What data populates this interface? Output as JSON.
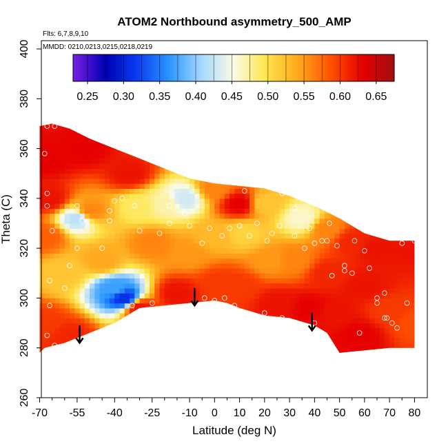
{
  "chart_data": {
    "type": "heatmap",
    "title": "ATOM2 Northbound asymmetry_500_AMP",
    "flights_note": "Flts: 6,7,8,9,10",
    "dates_note": "MMDD: 0210,0213,0215,0218,0219",
    "xlabel": "Latitude (deg N)",
    "ylabel": "Theta (C)",
    "xlim": [
      -70,
      82
    ],
    "ylim": [
      260,
      405
    ],
    "x_ticks": [
      -70,
      -55,
      -40,
      -25,
      -10,
      0,
      10,
      20,
      30,
      40,
      50,
      60,
      70,
      80
    ],
    "x_minor_ticks": [
      -65,
      -60,
      -50,
      -45,
      -35,
      -30,
      -20,
      -15,
      -5,
      5,
      15,
      25,
      35,
      45,
      55,
      65,
      75
    ],
    "y_ticks": [
      260,
      280,
      300,
      320,
      340,
      360,
      380,
      400
    ],
    "colorbar": {
      "min": 0.23,
      "max": 0.675,
      "tick_values": [
        0.25,
        0.3,
        0.35,
        0.4,
        0.45,
        0.5,
        0.55,
        0.6,
        0.65
      ],
      "tick_labels": [
        "0.25",
        "0.30",
        "0.35",
        "0.40",
        "0.45",
        "0.50",
        "0.55",
        "0.60",
        "0.65"
      ],
      "colors": [
        "#7a1fe0",
        "#0000b4",
        "#0a3cf0",
        "#2a96ff",
        "#a6d8ff",
        "#fbfbe6",
        "#ffe54c",
        "#ffa81c",
        "#ff5400",
        "#e60000",
        "#a01010"
      ]
    },
    "upper_boundary": [
      [
        -70,
        369
      ],
      [
        -65,
        370
      ],
      [
        -58,
        368
      ],
      [
        -50,
        364
      ],
      [
        -40,
        360
      ],
      [
        -30,
        356
      ],
      [
        -20,
        352
      ],
      [
        -10,
        348
      ],
      [
        0,
        346
      ],
      [
        10,
        345
      ],
      [
        20,
        344
      ],
      [
        30,
        341
      ],
      [
        40,
        337
      ],
      [
        50,
        332
      ],
      [
        60,
        326
      ],
      [
        70,
        323
      ],
      [
        80,
        323
      ]
    ],
    "lower_boundary": [
      [
        -70,
        278
      ],
      [
        -68,
        280
      ],
      [
        -60,
        282
      ],
      [
        -50,
        286
      ],
      [
        -40,
        290
      ],
      [
        -30,
        296
      ],
      [
        -20,
        297
      ],
      [
        -10,
        298
      ],
      [
        0,
        299
      ],
      [
        5,
        298
      ],
      [
        10,
        296
      ],
      [
        20,
        293
      ],
      [
        30,
        292
      ],
      [
        40,
        289
      ],
      [
        45,
        286
      ],
      [
        50,
        278
      ],
      [
        60,
        279
      ],
      [
        70,
        280
      ],
      [
        80,
        280
      ]
    ],
    "field_points": [
      {
        "lat": -68,
        "theta": 355,
        "value": 0.63
      },
      {
        "lat": -66,
        "theta": 340,
        "value": 0.62
      },
      {
        "lat": -68,
        "theta": 325,
        "value": 0.58
      },
      {
        "lat": -68,
        "theta": 290,
        "value": 0.6
      },
      {
        "lat": -60,
        "theta": 310,
        "value": 0.52
      },
      {
        "lat": -55,
        "theta": 332,
        "value": 0.42
      },
      {
        "lat": -58,
        "theta": 285,
        "value": 0.61
      },
      {
        "lat": -52,
        "theta": 360,
        "value": 0.63
      },
      {
        "lat": -50,
        "theta": 335,
        "value": 0.56
      },
      {
        "lat": -45,
        "theta": 315,
        "value": 0.54
      },
      {
        "lat": -40,
        "theta": 304,
        "value": 0.37
      },
      {
        "lat": -36,
        "theta": 300,
        "value": 0.31
      },
      {
        "lat": -30,
        "theta": 296,
        "value": 0.62
      },
      {
        "lat": -34,
        "theta": 350,
        "value": 0.62
      },
      {
        "lat": -30,
        "theta": 337,
        "value": 0.49
      },
      {
        "lat": -20,
        "theta": 338,
        "value": 0.47
      },
      {
        "lat": -25,
        "theta": 322,
        "value": 0.56
      },
      {
        "lat": -12,
        "theta": 340,
        "value": 0.43
      },
      {
        "lat": -10,
        "theta": 318,
        "value": 0.55
      },
      {
        "lat": -15,
        "theta": 302,
        "value": 0.62
      },
      {
        "lat": 0,
        "theta": 344,
        "value": 0.56
      },
      {
        "lat": 0,
        "theta": 325,
        "value": 0.53
      },
      {
        "lat": 2,
        "theta": 306,
        "value": 0.6
      },
      {
        "lat": 10,
        "theta": 338,
        "value": 0.63
      },
      {
        "lat": 12,
        "theta": 326,
        "value": 0.51
      },
      {
        "lat": 10,
        "theta": 305,
        "value": 0.6
      },
      {
        "lat": 20,
        "theta": 338,
        "value": 0.52
      },
      {
        "lat": 22,
        "theta": 315,
        "value": 0.55
      },
      {
        "lat": 25,
        "theta": 298,
        "value": 0.62
      },
      {
        "lat": 35,
        "theta": 332,
        "value": 0.46
      },
      {
        "lat": 32,
        "theta": 315,
        "value": 0.56
      },
      {
        "lat": 38,
        "theta": 296,
        "value": 0.63
      },
      {
        "lat": 45,
        "theta": 328,
        "value": 0.56
      },
      {
        "lat": 45,
        "theta": 310,
        "value": 0.61
      },
      {
        "lat": 48,
        "theta": 294,
        "value": 0.62
      },
      {
        "lat": 55,
        "theta": 323,
        "value": 0.61
      },
      {
        "lat": 60,
        "theta": 305,
        "value": 0.62
      },
      {
        "lat": 58,
        "theta": 285,
        "value": 0.63
      },
      {
        "lat": 65,
        "theta": 320,
        "value": 0.62
      },
      {
        "lat": 70,
        "theta": 295,
        "value": 0.6
      },
      {
        "lat": 78,
        "theta": 320,
        "value": 0.62
      },
      {
        "lat": 80,
        "theta": 290,
        "value": 0.59
      }
    ],
    "observation_points": [
      [
        -67,
        369
      ],
      [
        -64,
        369
      ],
      [
        -68,
        358
      ],
      [
        -67,
        342
      ],
      [
        -67,
        337
      ],
      [
        -65,
        327
      ],
      [
        -66,
        307
      ],
      [
        -66,
        297
      ],
      [
        -67,
        285
      ],
      [
        -64,
        281
      ],
      [
        -58,
        313
      ],
      [
        -60,
        304
      ],
      [
        -55,
        320
      ],
      [
        -53,
        331
      ],
      [
        -55,
        337
      ],
      [
        -45,
        320
      ],
      [
        -42,
        331
      ],
      [
        -42,
        335
      ],
      [
        -40,
        339
      ],
      [
        -37,
        340
      ],
      [
        -32,
        337
      ],
      [
        -30,
        327
      ],
      [
        -33,
        297
      ],
      [
        -25,
        298
      ],
      [
        -22,
        326
      ],
      [
        -18,
        330
      ],
      [
        -18,
        337
      ],
      [
        -10,
        329
      ],
      [
        -12,
        334
      ],
      [
        -5,
        322
      ],
      [
        -2,
        328
      ],
      [
        -4,
        300
      ],
      [
        0,
        299
      ],
      [
        3,
        325
      ],
      [
        4,
        300
      ],
      [
        6,
        328
      ],
      [
        8,
        297
      ],
      [
        10,
        329
      ],
      [
        12,
        343
      ],
      [
        13,
        294
      ],
      [
        14,
        325
      ],
      [
        17,
        330
      ],
      [
        20,
        294
      ],
      [
        21,
        323
      ],
      [
        23,
        326
      ],
      [
        26,
        329
      ],
      [
        27,
        342
      ],
      [
        27,
        292
      ],
      [
        32,
        336
      ],
      [
        32,
        325
      ],
      [
        36,
        320
      ],
      [
        38,
        328
      ],
      [
        40,
        322
      ],
      [
        40,
        290
      ],
      [
        43,
        323
      ],
      [
        45,
        323
      ],
      [
        46,
        330
      ],
      [
        47,
        309
      ],
      [
        49,
        321
      ],
      [
        52,
        311
      ],
      [
        52,
        313
      ],
      [
        56,
        323
      ],
      [
        55,
        310
      ],
      [
        58,
        286
      ],
      [
        60,
        319
      ],
      [
        62,
        312
      ],
      [
        65,
        300
      ],
      [
        65,
        298
      ],
      [
        68,
        302
      ],
      [
        68,
        292
      ],
      [
        69,
        292
      ],
      [
        71,
        290
      ],
      [
        73,
        288
      ],
      [
        75,
        322
      ],
      [
        77,
        298
      ],
      [
        80,
        323
      ]
    ],
    "arrows": [
      {
        "lat": -54,
        "theta_top": 289,
        "theta_tip": 282
      },
      {
        "lat": -8,
        "theta_top": 304,
        "theta_tip": 297
      },
      {
        "lat": 39,
        "theta_top": 294,
        "theta_tip": 287
      }
    ]
  }
}
